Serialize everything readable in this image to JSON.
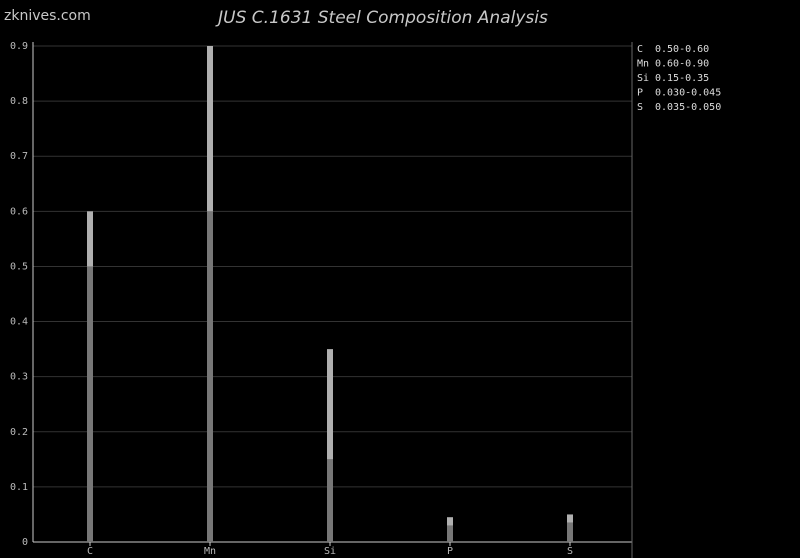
{
  "site": "zknives.com",
  "chart_data": {
    "type": "range_bar",
    "title": "JUS C.1631 Steel Composition Analysis",
    "categories": [
      "C",
      "Mn",
      "Si",
      "P",
      "S"
    ],
    "min": [
      0.5,
      0.6,
      0.15,
      0.03,
      0.035
    ],
    "max": [
      0.6,
      0.9,
      0.35,
      0.045,
      0.05
    ],
    "ranges": [
      "0.50-0.60",
      "0.60-0.90",
      "0.15-0.35",
      "0.030-0.045",
      "0.035-0.050"
    ],
    "min_color": "#777777",
    "max_color": "#b0b0b0",
    "ylim": [
      0,
      0.9
    ],
    "yticks": [
      0,
      0.1,
      0.2,
      0.3,
      0.4,
      0.5,
      0.6,
      0.7,
      0.8,
      0.9
    ],
    "grid": true
  }
}
